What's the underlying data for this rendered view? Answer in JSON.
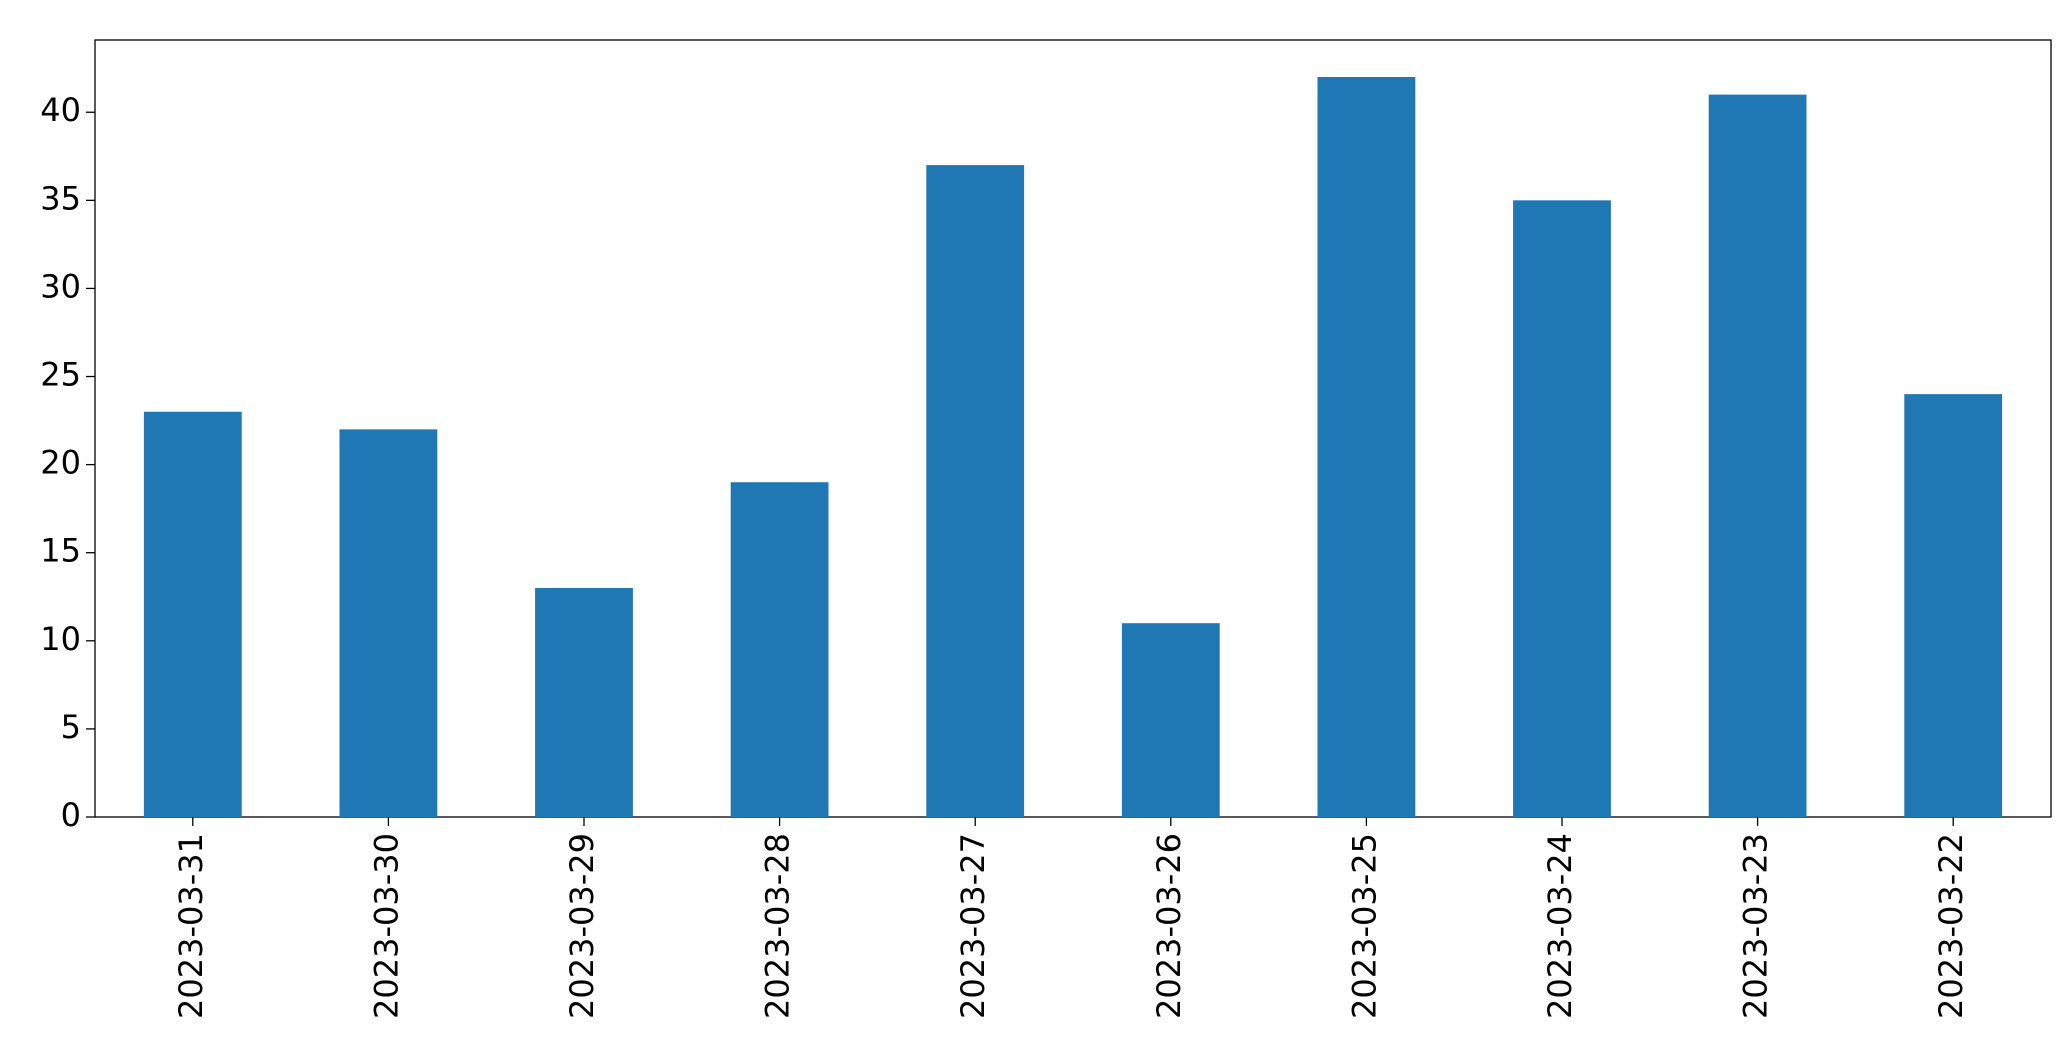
{
  "chart_data": {
    "type": "bar",
    "categories": [
      "2023-03-31",
      "2023-03-30",
      "2023-03-29",
      "2023-03-28",
      "2023-03-27",
      "2023-03-26",
      "2023-03-25",
      "2023-03-24",
      "2023-03-23",
      "2023-03-22"
    ],
    "values": [
      23,
      22,
      13,
      19,
      37,
      11,
      42,
      35,
      41,
      24
    ],
    "color": "#1f77b4",
    "ylim": [
      0,
      44.1
    ],
    "yticks": [
      0,
      5,
      10,
      15,
      20,
      25,
      30,
      35,
      40
    ],
    "grid": false
  }
}
